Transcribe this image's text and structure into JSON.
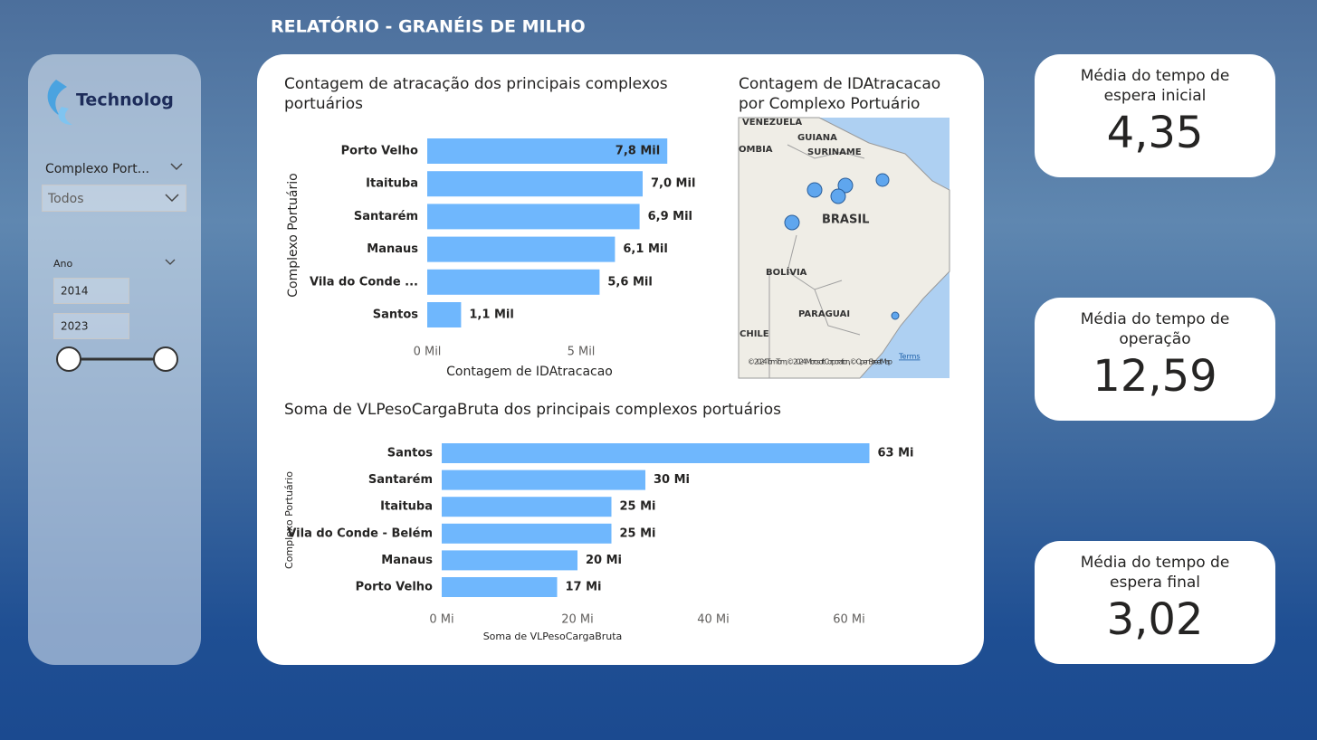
{
  "header": {
    "title": "RELATÓRIO - GRANÉIS DE MILHO"
  },
  "sidebar": {
    "logo": "Technolog",
    "filter_label": "Complexo Port...",
    "filter_value": "Todos",
    "year_label": "Ano",
    "year_from": "2014",
    "year_to": "2023"
  },
  "chart_data": [
    {
      "type": "bar",
      "orientation": "horizontal",
      "title": "Contagem de atracação dos principais complexos portuários",
      "categories": [
        "Porto Velho",
        "Itaituba",
        "Santarém",
        "Manaus",
        "Vila do Conde ...",
        "Santos"
      ],
      "values": [
        7.8,
        7.0,
        6.9,
        6.1,
        5.6,
        1.1
      ],
      "value_labels": [
        "7,8 Mil",
        "7,0 Mil",
        "6,9 Mil",
        "6,1 Mil",
        "5,6 Mil",
        "1,1 Mil"
      ],
      "color": "#6fb7fd",
      "xlim": [
        0,
        9
      ],
      "xticks": [
        {
          "value": 0,
          "label": "0 Mil"
        },
        {
          "value": 5,
          "label": "5 Mil"
        }
      ],
      "xlabel": "Contagem de IDAtracacao",
      "ylabel": "Complexo Portuário",
      "grid": false
    },
    {
      "type": "bar",
      "orientation": "horizontal",
      "title": "Soma de VLPesoCargaBruta dos principais complexos portuários",
      "categories": [
        "Santos",
        "Santarém",
        "Itaituba",
        "Vila do Conde - Belém",
        "Manaus",
        "Porto Velho"
      ],
      "values": [
        63,
        30,
        25,
        25,
        20,
        17
      ],
      "value_labels": [
        "63 Mi",
        "30 Mi",
        "25 Mi",
        "25 Mi",
        "20 Mi",
        "17 Mi"
      ],
      "color": "#6fb7fd",
      "xlim": [
        0,
        70
      ],
      "xticks": [
        {
          "value": 0,
          "label": "0 Mi"
        },
        {
          "value": 20,
          "label": "20 Mi"
        },
        {
          "value": 40,
          "label": "40 Mi"
        },
        {
          "value": 60,
          "label": "60 Mi"
        }
      ],
      "xlabel": "Soma de VLPesoCargaBruta",
      "ylabel": "Complexo Portuário",
      "grid": false
    }
  ],
  "map": {
    "title": "Contagem de IDAtracacao por Complexo Portuário",
    "labels": [
      "VENEZUELA",
      "GUIANA",
      "SURINAME",
      "OMBIA",
      "BRASIL",
      "BOLÍVIA",
      "PARAGUAI",
      "CHILE"
    ],
    "attribution": "© 2024 TomTom, © 2024 Microsoft Corporation, © OpenStreetMap",
    "terms": "Terms"
  },
  "cards": [
    {
      "label": "Média do tempo de espera inicial",
      "value": "4,35"
    },
    {
      "label": "Média do tempo de operação",
      "value": "12,59"
    },
    {
      "label": "Média do tempo de espera final",
      "value": "3,02"
    }
  ]
}
